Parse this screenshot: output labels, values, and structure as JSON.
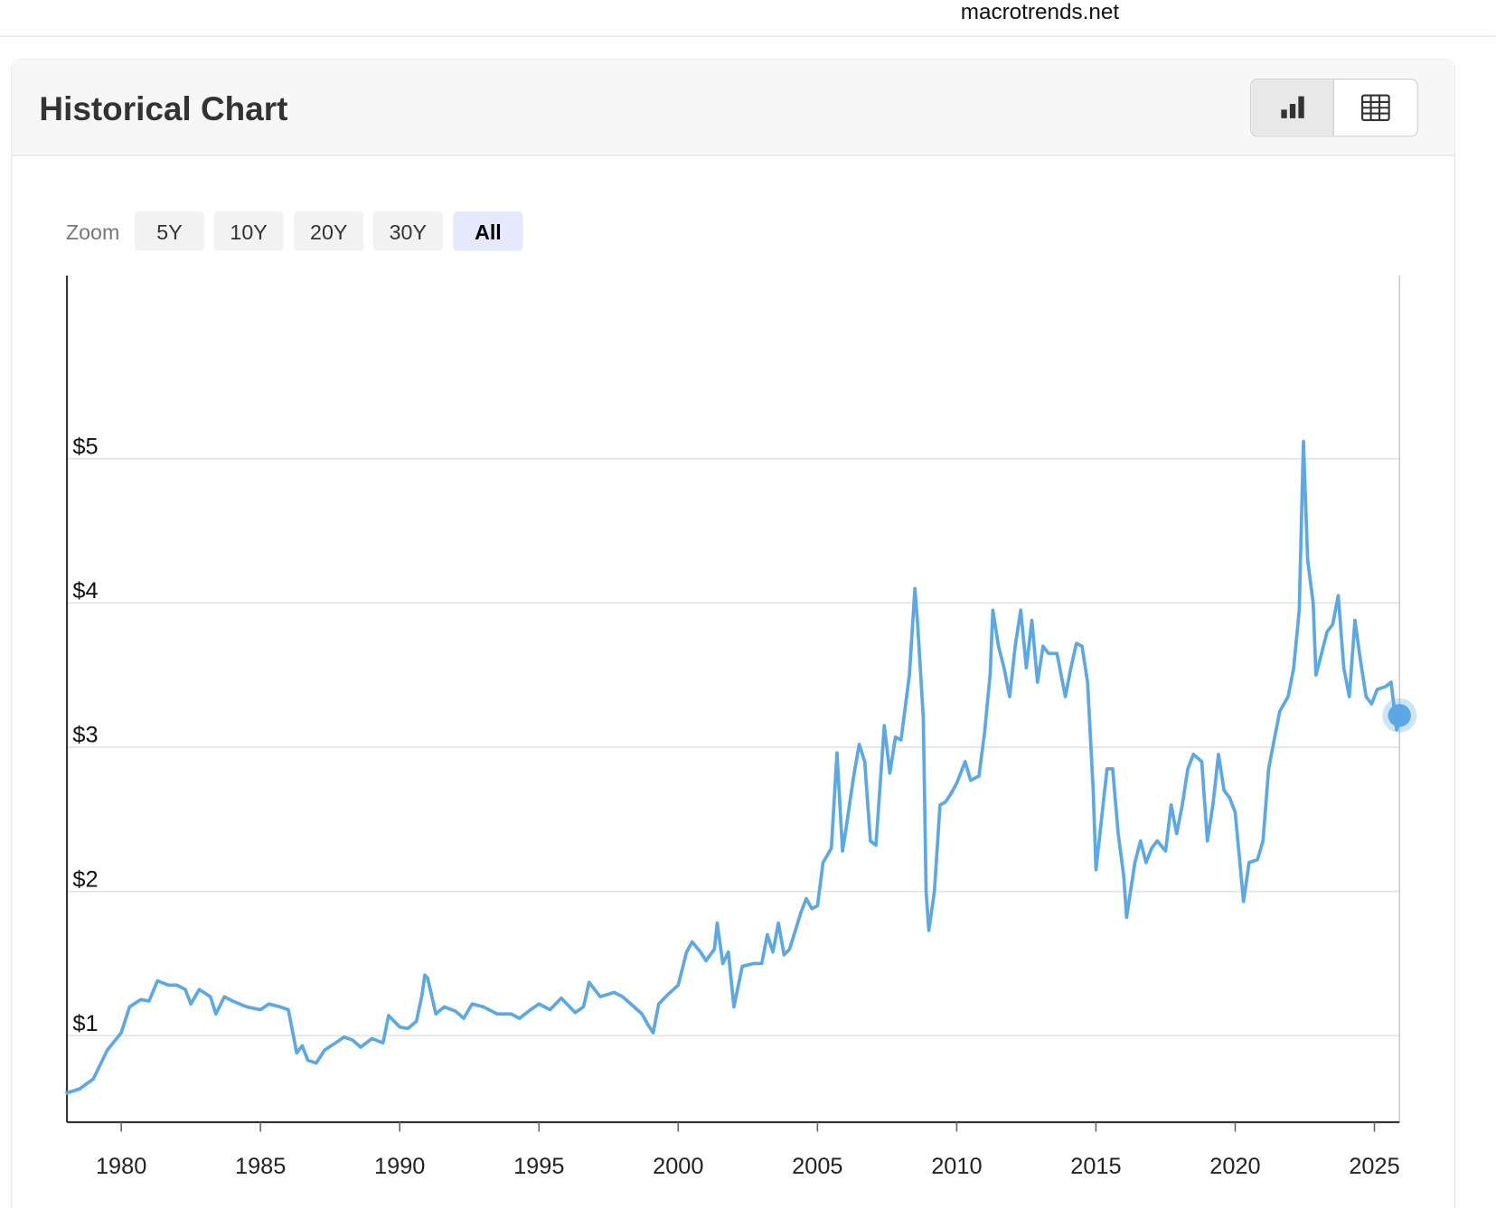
{
  "site": "macrotrends.net",
  "header": {
    "title": "Historical Chart"
  },
  "zoom": {
    "label": "Zoom",
    "options": [
      "5Y",
      "10Y",
      "20Y",
      "30Y",
      "All"
    ],
    "active": 4
  },
  "chart_data": {
    "type": "line",
    "color": "#5aa9e6",
    "grid": true,
    "x": [
      1978.0,
      1978.5,
      1979.0,
      1979.5,
      1980.0,
      1980.3,
      1980.7,
      1981.0,
      1981.3,
      1981.7,
      1982.0,
      1982.3,
      1982.5,
      1982.8,
      1983.2,
      1983.4,
      1983.7,
      1984.0,
      1984.5,
      1985.0,
      1985.3,
      1985.7,
      1986.0,
      1986.3,
      1986.5,
      1986.7,
      1987.0,
      1987.3,
      1987.7,
      1988.0,
      1988.3,
      1988.6,
      1989.0,
      1989.4,
      1989.6,
      1990.0,
      1990.3,
      1990.6,
      1990.8,
      1990.9,
      1991.0,
      1991.3,
      1991.6,
      1992.0,
      1992.3,
      1992.6,
      1993.0,
      1993.5,
      1994.0,
      1994.3,
      1994.7,
      1995.0,
      1995.4,
      1995.8,
      1996.3,
      1996.6,
      1996.8,
      1997.2,
      1997.7,
      1998.0,
      1998.3,
      1998.7,
      1998.9,
      1999.1,
      1999.3,
      1999.6,
      2000.0,
      2000.3,
      2000.5,
      2000.8,
      2001.0,
      2001.3,
      2001.4,
      2001.6,
      2001.8,
      2002.0,
      2002.3,
      2002.7,
      2003.0,
      2003.2,
      2003.4,
      2003.6,
      2003.8,
      2004.0,
      2004.4,
      2004.6,
      2004.8,
      2005.0,
      2005.2,
      2005.5,
      2005.7,
      2005.9,
      2006.0,
      2006.3,
      2006.5,
      2006.7,
      2006.9,
      2007.1,
      2007.4,
      2007.6,
      2007.8,
      2008.0,
      2008.3,
      2008.5,
      2008.6,
      2008.8,
      2008.9,
      2009.0,
      2009.2,
      2009.4,
      2009.6,
      2009.8,
      2010.0,
      2010.3,
      2010.5,
      2010.8,
      2011.0,
      2011.2,
      2011.3,
      2011.5,
      2011.7,
      2011.9,
      2012.1,
      2012.3,
      2012.5,
      2012.7,
      2012.9,
      2013.1,
      2013.3,
      2013.6,
      2013.9,
      2014.1,
      2014.3,
      2014.5,
      2014.7,
      2014.9,
      2015.0,
      2015.2,
      2015.4,
      2015.6,
      2015.8,
      2016.0,
      2016.1,
      2016.4,
      2016.6,
      2016.8,
      2017.0,
      2017.2,
      2017.5,
      2017.7,
      2017.9,
      2018.1,
      2018.3,
      2018.5,
      2018.8,
      2019.0,
      2019.2,
      2019.4,
      2019.6,
      2019.8,
      2020.0,
      2020.3,
      2020.5,
      2020.8,
      2021.0,
      2021.2,
      2021.4,
      2021.6,
      2021.9,
      2022.1,
      2022.3,
      2022.45,
      2022.6,
      2022.8,
      2022.9,
      2023.1,
      2023.3,
      2023.5,
      2023.7,
      2023.9,
      2024.1,
      2024.3,
      2024.5,
      2024.7,
      2024.9,
      2025.1,
      2025.4,
      2025.6,
      2025.8,
      2025.9
    ],
    "values": [
      0.6,
      0.63,
      0.7,
      0.9,
      1.02,
      1.2,
      1.25,
      1.24,
      1.38,
      1.35,
      1.35,
      1.32,
      1.22,
      1.32,
      1.27,
      1.15,
      1.27,
      1.24,
      1.2,
      1.18,
      1.22,
      1.2,
      1.18,
      0.88,
      0.93,
      0.83,
      0.81,
      0.9,
      0.95,
      0.99,
      0.97,
      0.92,
      0.98,
      0.95,
      1.14,
      1.06,
      1.05,
      1.1,
      1.28,
      1.42,
      1.4,
      1.15,
      1.2,
      1.17,
      1.12,
      1.22,
      1.2,
      1.15,
      1.15,
      1.12,
      1.18,
      1.22,
      1.18,
      1.26,
      1.16,
      1.2,
      1.37,
      1.27,
      1.3,
      1.27,
      1.22,
      1.15,
      1.08,
      1.02,
      1.22,
      1.28,
      1.35,
      1.58,
      1.65,
      1.58,
      1.52,
      1.6,
      1.78,
      1.5,
      1.58,
      1.2,
      1.48,
      1.5,
      1.5,
      1.7,
      1.58,
      1.78,
      1.56,
      1.6,
      1.85,
      1.95,
      1.88,
      1.9,
      2.2,
      2.3,
      2.96,
      2.28,
      2.4,
      2.8,
      3.02,
      2.9,
      2.35,
      2.32,
      3.15,
      2.82,
      3.07,
      3.05,
      3.5,
      4.1,
      3.85,
      3.2,
      2.0,
      1.73,
      2.0,
      2.6,
      2.62,
      2.68,
      2.75,
      2.9,
      2.77,
      2.8,
      3.1,
      3.5,
      3.95,
      3.7,
      3.55,
      3.35,
      3.7,
      3.95,
      3.55,
      3.88,
      3.45,
      3.7,
      3.65,
      3.65,
      3.35,
      3.55,
      3.72,
      3.7,
      3.45,
      2.7,
      2.15,
      2.5,
      2.85,
      2.85,
      2.4,
      2.1,
      1.82,
      2.2,
      2.35,
      2.2,
      2.3,
      2.35,
      2.28,
      2.6,
      2.4,
      2.6,
      2.85,
      2.95,
      2.9,
      2.35,
      2.6,
      2.95,
      2.7,
      2.65,
      2.55,
      1.93,
      2.2,
      2.22,
      2.35,
      2.85,
      3.05,
      3.25,
      3.35,
      3.55,
      3.95,
      5.12,
      4.3,
      4.0,
      3.5,
      3.65,
      3.8,
      3.85,
      4.05,
      3.55,
      3.35,
      3.88,
      3.6,
      3.35,
      3.3,
      3.4,
      3.42,
      3.45,
      3.12,
      3.22
    ],
    "xlim": [
      1978.05,
      2025.9
    ],
    "xticks": [
      1980,
      1985,
      1990,
      1995,
      2000,
      2005,
      2010,
      2015,
      2020,
      2025
    ],
    "ylim": [
      0.4,
      6.27
    ],
    "yticks": [
      {
        "value": 1,
        "label": "$1"
      },
      {
        "value": 2,
        "label": "$2"
      },
      {
        "value": 3,
        "label": "$3"
      },
      {
        "value": 4,
        "label": "$4"
      },
      {
        "value": 5,
        "label": "$5"
      }
    ]
  }
}
